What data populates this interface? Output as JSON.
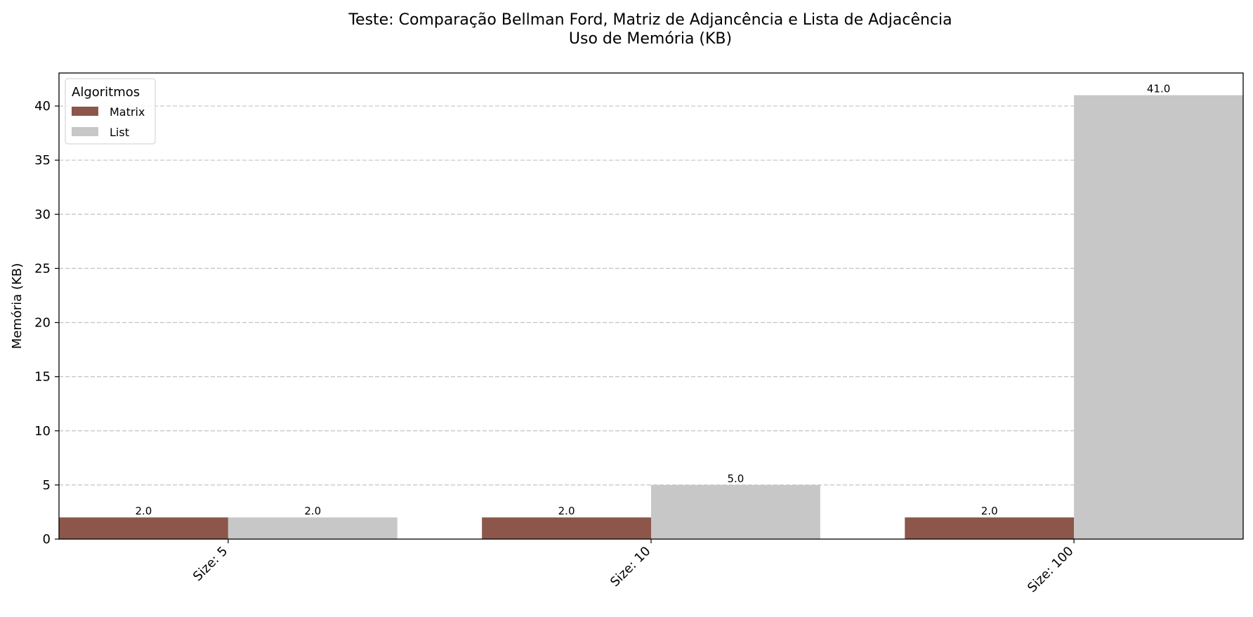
{
  "chart_data": {
    "type": "bar",
    "title": "Teste: Comparação Bellman Ford, Matriz de Adjancência e Lista de Adjacência",
    "subtitle": "Uso de Memória (KB)",
    "xlabel": "",
    "ylabel": "Memória (KB)",
    "categories": [
      "Size: 5",
      "Size: 10",
      "Size: 100"
    ],
    "series": [
      {
        "name": "Matrix",
        "values": [
          2.0,
          2.0,
          2.0
        ],
        "labels": [
          "2.0",
          "2.0",
          "2.0"
        ],
        "color": "#8c564b"
      },
      {
        "name": "List",
        "values": [
          2.0,
          5.0,
          41.0
        ],
        "labels": [
          "2.0",
          "5.0",
          "41.0"
        ],
        "color": "#c7c7c7"
      }
    ],
    "ylim": [
      0,
      43.05
    ],
    "yticks": [
      0,
      5,
      10,
      15,
      20,
      25,
      30,
      35,
      40
    ],
    "grid": "y-dashed",
    "legend": {
      "title": "Algoritmos",
      "position": "top-left"
    }
  }
}
